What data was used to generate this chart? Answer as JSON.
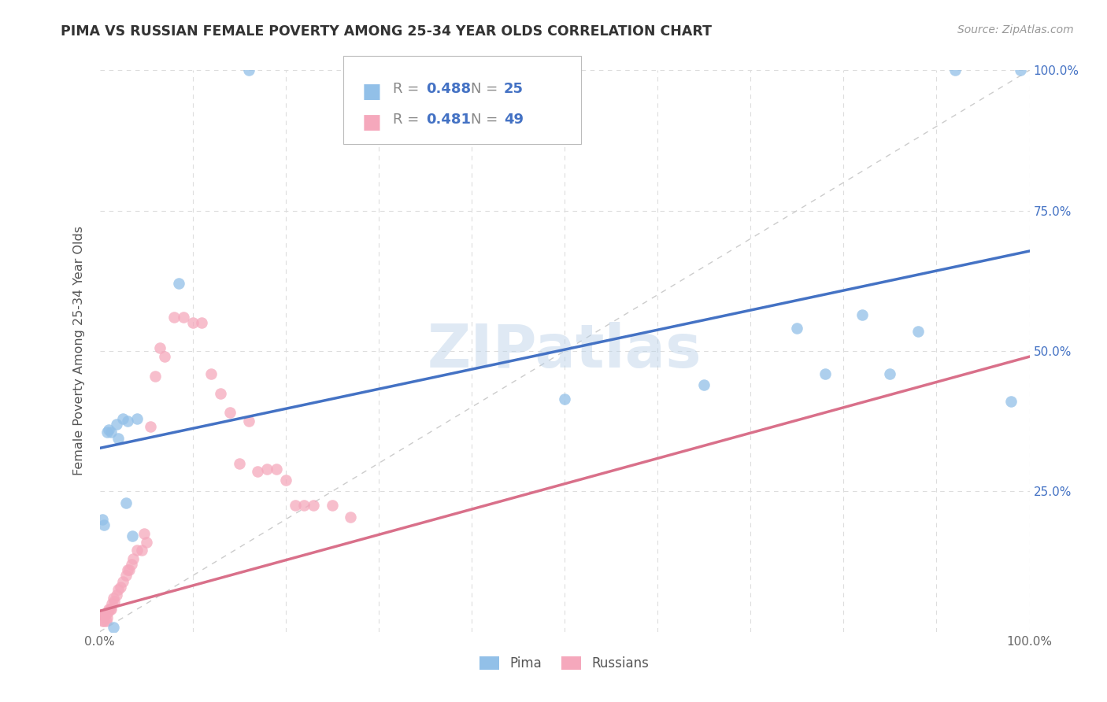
{
  "title": "PIMA VS RUSSIAN FEMALE POVERTY AMONG 25-34 YEAR OLDS CORRELATION CHART",
  "source": "Source: ZipAtlas.com",
  "ylabel": "Female Poverty Among 25-34 Year Olds",
  "watermark": "ZIPatlas",
  "xlim": [
    0,
    1
  ],
  "ylim": [
    0,
    1
  ],
  "pima_color": "#92C0E8",
  "russian_color": "#F5A8BC",
  "pima_line_color": "#4472C4",
  "russian_line_color": "#D9708A",
  "diagonal_color": "#CCCCCC",
  "grid_color": "#DDDDDD",
  "background_color": "#FFFFFF",
  "legend_r_pima": "0.488",
  "legend_n_pima": "25",
  "legend_r_russian": "0.481",
  "legend_n_russian": "49",
  "legend_label_pima": "Pima",
  "legend_label_russian": "Russians",
  "pima_x": [
    0.003,
    0.005,
    0.008,
    0.01,
    0.012,
    0.015,
    0.018,
    0.02,
    0.025,
    0.028,
    0.03,
    0.035,
    0.04,
    0.085,
    0.16,
    0.5,
    0.65,
    0.75,
    0.78,
    0.82,
    0.85,
    0.88,
    0.92,
    0.98,
    0.99
  ],
  "pima_y": [
    0.2,
    0.19,
    0.355,
    0.36,
    0.355,
    0.008,
    0.37,
    0.345,
    0.38,
    0.23,
    0.375,
    0.17,
    0.38,
    0.62,
    1.0,
    0.415,
    0.44,
    0.54,
    0.46,
    0.565,
    0.46,
    0.535,
    1.0,
    0.41,
    1.0
  ],
  "russian_x": [
    0.002,
    0.003,
    0.004,
    0.005,
    0.006,
    0.007,
    0.008,
    0.009,
    0.01,
    0.011,
    0.012,
    0.013,
    0.015,
    0.016,
    0.018,
    0.02,
    0.022,
    0.025,
    0.028,
    0.03,
    0.032,
    0.034,
    0.036,
    0.04,
    0.045,
    0.048,
    0.05,
    0.055,
    0.06,
    0.065,
    0.07,
    0.08,
    0.09,
    0.1,
    0.11,
    0.12,
    0.13,
    0.14,
    0.15,
    0.16,
    0.17,
    0.18,
    0.19,
    0.2,
    0.21,
    0.22,
    0.23,
    0.25,
    0.27
  ],
  "russian_y": [
    0.03,
    0.02,
    0.03,
    0.02,
    0.03,
    0.02,
    0.025,
    0.035,
    0.04,
    0.04,
    0.04,
    0.05,
    0.06,
    0.055,
    0.065,
    0.075,
    0.08,
    0.09,
    0.1,
    0.11,
    0.11,
    0.12,
    0.13,
    0.145,
    0.145,
    0.175,
    0.16,
    0.365,
    0.455,
    0.505,
    0.49,
    0.56,
    0.56,
    0.55,
    0.55,
    0.46,
    0.425,
    0.39,
    0.3,
    0.375,
    0.285,
    0.29,
    0.29,
    0.27,
    0.225,
    0.225,
    0.225,
    0.225,
    0.205
  ],
  "pima_line_x0": 0.0,
  "pima_line_y0": 0.327,
  "pima_line_x1": 1.0,
  "pima_line_y1": 0.678,
  "russian_line_x0": 0.0,
  "russian_line_y0": 0.037,
  "russian_line_x1": 1.0,
  "russian_line_y1": 0.49
}
